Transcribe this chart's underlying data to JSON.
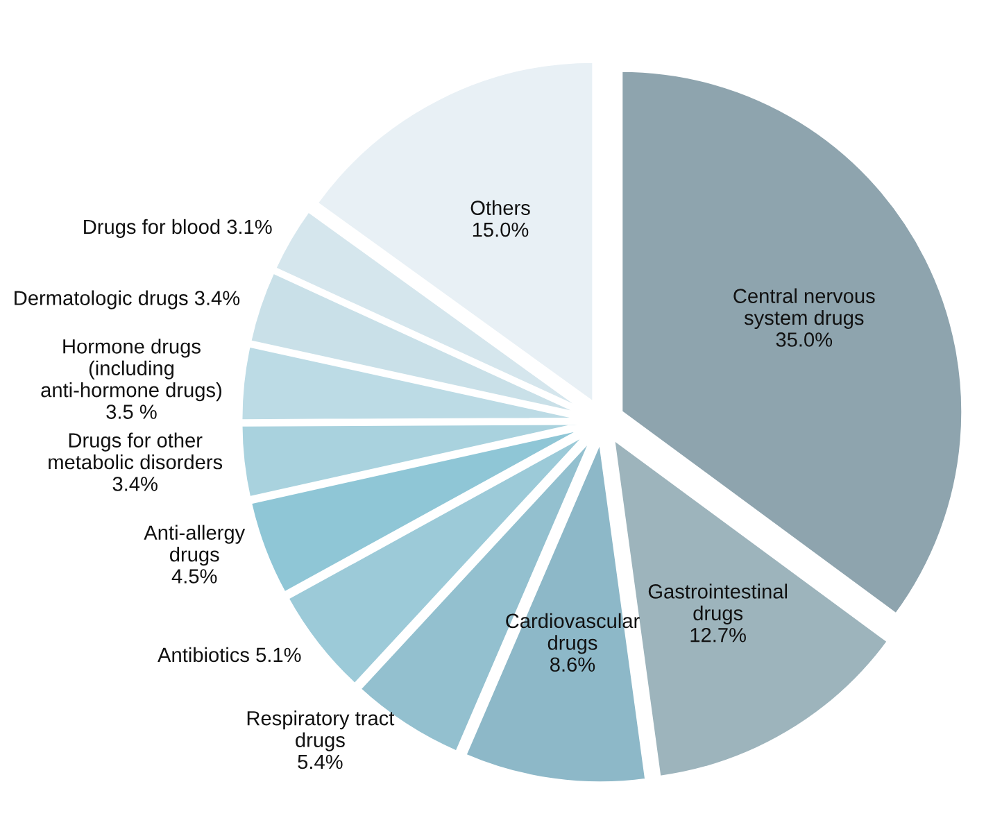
{
  "chart_data": {
    "type": "pie",
    "categories": [
      "Central nervous\nsystem drugs",
      "Gastrointestinal\ndrugs",
      "Cardiovascular\ndrugs",
      "Respiratory tract\ndrugs",
      "Antibiotics",
      "Anti-allergy\ndrugs",
      "Drugs for other\nmetabolic disorders",
      "Hormone drugs\n(including\nanti-hormone drugs)",
      "Dermatologic drugs",
      "Drugs for blood",
      "Others"
    ],
    "values": [
      35.0,
      12.7,
      8.6,
      5.4,
      5.1,
      4.5,
      3.4,
      3.5,
      3.4,
      3.1,
      15.0
    ],
    "value_labels": [
      "35.0%",
      "12.7%",
      "8.6%",
      "5.4%",
      "5.1%",
      "4.5%",
      "3.4%",
      "3.5 %",
      "3.4%",
      "3.1%",
      "15.0%"
    ],
    "colors": [
      "#8ea4ae",
      "#9db4bc",
      "#8db8c8",
      "#93c0cf",
      "#9ccad8",
      "#8fc6d6",
      "#a9d2de",
      "#bcdbe5",
      "#c9e0e8",
      "#d5e6ed",
      "#e8f0f5"
    ],
    "legend": false
  }
}
